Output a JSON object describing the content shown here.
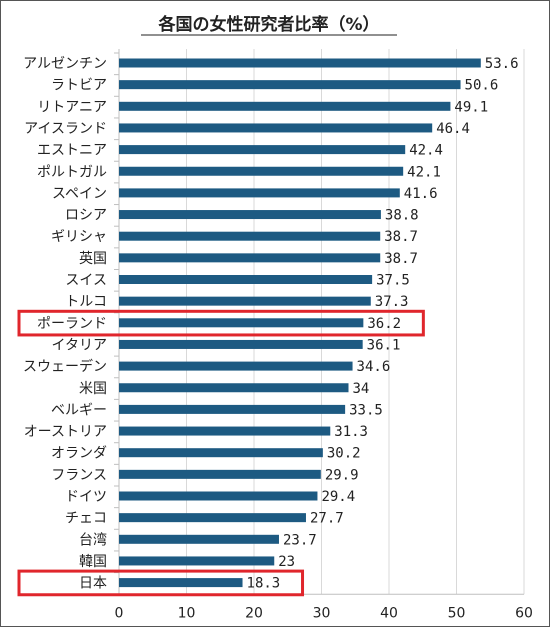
{
  "chart_data": {
    "type": "bar",
    "orientation": "horizontal",
    "title": "各国の女性研究者比率（%）",
    "xlabel": "",
    "ylabel": "",
    "xlim": [
      0,
      60
    ],
    "xticks": [
      0,
      10,
      20,
      30,
      40,
      50,
      60
    ],
    "grid": true,
    "categories": [
      "アルゼンチン",
      "ラトビア",
      "リトアニア",
      "アイスランド",
      "エストニア",
      "ポルトガル",
      "スペイン",
      "ロシア",
      "ギリシャ",
      "英国",
      "スイス",
      "トルコ",
      "ポーランド",
      "イタリア",
      "スウェーデン",
      "米国",
      "ベルギー",
      "オーストリア",
      "オランダ",
      "フランス",
      "ドイツ",
      "チェコ",
      "台湾",
      "韓国",
      "日本"
    ],
    "values": [
      53.6,
      50.6,
      49.1,
      46.4,
      42.4,
      42.1,
      41.6,
      38.8,
      38.7,
      38.7,
      37.5,
      37.3,
      36.2,
      36.1,
      34.6,
      34,
      33.5,
      31.3,
      30.2,
      29.9,
      29.4,
      27.7,
      23.7,
      23,
      18.3
    ],
    "value_labels": [
      "53.6",
      "50.6",
      "49.1",
      "46.4",
      "42.4",
      "42.1",
      "41.6",
      "38.8",
      "38.7",
      "38.7",
      "37.5",
      "37.3",
      "36.2",
      "36.1",
      "34.6",
      "34",
      "33.5",
      "31.3",
      "30.2",
      "29.9",
      "29.4",
      "27.7",
      "23.7",
      "23",
      "18.3"
    ],
    "highlighted": [
      "ポーランド",
      "日本"
    ],
    "colors": {
      "bar": "#1d5a82",
      "highlight": "#e0262c",
      "grid": "#d9d9d9",
      "axis": "#bfbfbf",
      "text": "#222222"
    }
  }
}
